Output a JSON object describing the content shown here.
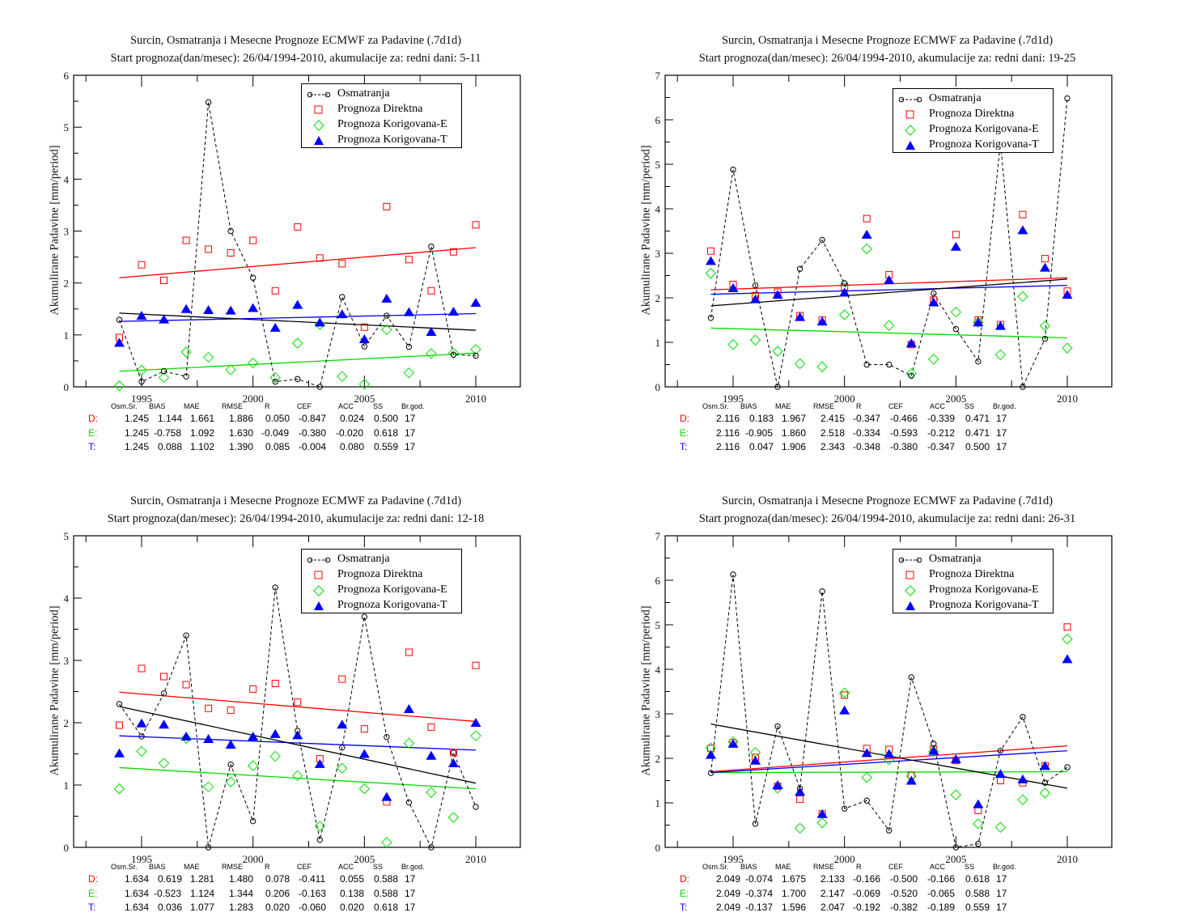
{
  "colors": {
    "observed": "#000000",
    "direct": "#ff0000",
    "corrected_e": "#00dd00",
    "corrected_t": "#0000ff"
  },
  "legend": {
    "observed": "Osmatranja",
    "direct": "Prognoza Direktna",
    "corrected_e": "Prognoza Korigovana-E",
    "corrected_t": "Prognoza Korigovana-T"
  },
  "stats_headers": [
    "Osm.Sr.",
    "BIAS",
    "MAE",
    "RMSE",
    "R",
    "CEF",
    "ACC",
    "SS",
    "Br.god."
  ],
  "stats_row_labels": [
    "D:",
    "E:",
    "T:"
  ],
  "chart_data": [
    {
      "type": "scatter",
      "title": "Surcin, Osmatranja i Mesecne Prognoze ECMWF za Padavine (.7d1d)",
      "subtitle": "Start prognoza(dan/mesec): 26/04/1994-2010, akumulacije za: redni dani: 5-11",
      "xlabel": "",
      "ylabel": "Akumulirane Padavine [mm/period]",
      "xlim": [
        1992,
        2012
      ],
      "ylim": [
        0,
        6
      ],
      "xticks": [
        1995,
        2000,
        2005,
        2010
      ],
      "yticks": [
        0,
        1,
        2,
        3,
        4,
        5,
        6
      ],
      "legend_position": "top-right",
      "x": [
        1994,
        1995,
        1996,
        1997,
        1998,
        1999,
        2000,
        2001,
        2002,
        2003,
        2004,
        2005,
        2006,
        2007,
        2008,
        2009,
        2010
      ],
      "series": [
        {
          "name": "Osmatranja",
          "values": [
            1.29,
            0.1,
            0.3,
            0.2,
            5.48,
            3.0,
            2.1,
            0.1,
            0.15,
            0.0,
            1.73,
            0.78,
            1.37,
            0.77,
            2.7,
            0.62,
            0.6
          ],
          "trend": [
            1.42,
            1.09
          ]
        },
        {
          "name": "Prognoza Direktna",
          "values": [
            0.95,
            2.35,
            2.05,
            2.82,
            2.65,
            2.58,
            2.82,
            1.85,
            3.08,
            2.48,
            2.37,
            1.15,
            3.47,
            2.45,
            1.85,
            2.6,
            3.12
          ],
          "trend": [
            2.1,
            2.68
          ]
        },
        {
          "name": "Prognoza Korigovana-E",
          "values": [
            0.02,
            0.32,
            0.18,
            0.67,
            0.57,
            0.33,
            0.46,
            0.18,
            0.84,
            1.2,
            0.2,
            0.05,
            1.1,
            0.27,
            0.64,
            0.65,
            0.72
          ],
          "trend": [
            0.3,
            0.65
          ]
        },
        {
          "name": "Prognoza Korigovana-T",
          "values": [
            0.85,
            1.37,
            1.3,
            1.5,
            1.48,
            1.47,
            1.52,
            1.14,
            1.58,
            1.24,
            1.4,
            0.92,
            1.7,
            1.44,
            1.06,
            1.45,
            1.62
          ],
          "trend": [
            1.26,
            1.41
          ]
        }
      ],
      "stats": [
        [
          "1.245",
          "1.144",
          "1.661",
          "1.886",
          "0.050",
          "-0.847",
          "0.024",
          "0.500",
          "17"
        ],
        [
          "1.245",
          "-0.758",
          "1.092",
          "1.630",
          "-0.049",
          "-0.380",
          "-0.020",
          "0.618",
          "17"
        ],
        [
          "1.245",
          "0.088",
          "1.102",
          "1.390",
          "0.085",
          "-0.004",
          "0.080",
          "0.559",
          "17"
        ]
      ]
    },
    {
      "type": "scatter",
      "title": "Surcin, Osmatranja i Mesecne Prognoze ECMWF za Padavine (.7d1d)",
      "subtitle": "Start prognoza(dan/mesec): 26/04/1994-2010, akumulacije za: redni dani: 19-25",
      "xlabel": "",
      "ylabel": "Akumulirane Padavine [mm/period]",
      "xlim": [
        1992,
        2012
      ],
      "ylim": [
        0,
        7
      ],
      "xticks": [
        1995,
        2000,
        2005,
        2010
      ],
      "yticks": [
        0,
        1,
        2,
        3,
        4,
        5,
        6,
        7
      ],
      "legend_position": "top-right",
      "x": [
        1994,
        1995,
        1996,
        1997,
        1998,
        1999,
        2000,
        2001,
        2002,
        2003,
        2004,
        2005,
        2006,
        2007,
        2008,
        2009,
        2010
      ],
      "series": [
        {
          "name": "Osmatranja",
          "values": [
            1.55,
            4.88,
            2.28,
            0.0,
            2.65,
            3.3,
            2.33,
            0.5,
            0.5,
            0.25,
            2.1,
            1.3,
            0.57,
            5.5,
            0.0,
            1.08,
            6.48
          ],
          "trend": [
            1.82,
            2.42
          ]
        },
        {
          "name": "Prognoza Direktna",
          "values": [
            3.05,
            2.3,
            2.05,
            2.13,
            1.6,
            1.5,
            2.25,
            3.78,
            2.52,
            0.95,
            1.95,
            3.42,
            1.5,
            1.4,
            3.87,
            2.88,
            2.15
          ],
          "trend": [
            2.18,
            2.45
          ]
        },
        {
          "name": "Prognoza Korigovana-E",
          "values": [
            2.55,
            0.95,
            1.05,
            0.8,
            0.52,
            0.45,
            1.62,
            3.1,
            1.38,
            0.3,
            0.62,
            1.68,
            1.45,
            0.72,
            2.03,
            1.37,
            0.87
          ],
          "trend": [
            1.32,
            1.1
          ]
        },
        {
          "name": "Prognoza Korigovana-T",
          "values": [
            2.83,
            2.22,
            1.97,
            2.07,
            1.57,
            1.47,
            2.12,
            3.42,
            2.4,
            0.98,
            1.9,
            3.15,
            1.45,
            1.37,
            3.52,
            2.68,
            2.07
          ],
          "trend": [
            2.08,
            2.28
          ]
        }
      ],
      "stats": [
        [
          "2.116",
          "0.183",
          "1.967",
          "2.415",
          "-0.347",
          "-0.466",
          "-0.339",
          "0.471",
          "17"
        ],
        [
          "2.116",
          "-0.905",
          "1.860",
          "2.518",
          "-0.334",
          "-0.593",
          "-0.212",
          "0.471",
          "17"
        ],
        [
          "2.116",
          "0.047",
          "1.906",
          "2.343",
          "-0.348",
          "-0.380",
          "-0.347",
          "0.500",
          "17"
        ]
      ]
    },
    {
      "type": "scatter",
      "title": "Surcin, Osmatranja i Mesecne Prognoze ECMWF za Padavine (.7d1d)",
      "subtitle": "Start prognoza(dan/mesec): 26/04/1994-2010, akumulacije za: redni dani: 12-18",
      "xlabel": "",
      "ylabel": "Akumulirane Padavine [mm/period]",
      "xlim": [
        1992,
        2012
      ],
      "ylim": [
        0,
        5
      ],
      "xticks": [
        1995,
        2000,
        2005,
        2010
      ],
      "yticks": [
        0,
        1,
        2,
        3,
        4,
        5
      ],
      "legend_position": "top-right",
      "x": [
        1994,
        1995,
        1996,
        1997,
        1998,
        1999,
        2000,
        2001,
        2002,
        2003,
        2004,
        2005,
        2006,
        2007,
        2008,
        2009,
        2010
      ],
      "series": [
        {
          "name": "Osmatranja",
          "values": [
            2.3,
            1.78,
            2.47,
            3.4,
            0.0,
            1.33,
            0.42,
            4.17,
            1.87,
            0.12,
            1.6,
            3.7,
            1.77,
            0.72,
            0.0,
            1.52,
            0.65
          ],
          "trend": [
            2.26,
            1.03
          ]
        },
        {
          "name": "Prognoza Direktna",
          "values": [
            1.96,
            2.87,
            2.74,
            2.61,
            2.23,
            2.2,
            2.54,
            2.63,
            2.33,
            1.42,
            2.7,
            1.9,
            0.73,
            3.13,
            1.93,
            1.52,
            2.92
          ],
          "trend": [
            2.49,
            2.02
          ]
        },
        {
          "name": "Prognoza Korigovana-E",
          "values": [
            0.94,
            1.54,
            1.35,
            1.75,
            0.97,
            1.05,
            1.31,
            1.46,
            1.15,
            0.34,
            1.27,
            0.94,
            0.08,
            1.67,
            0.88,
            0.48,
            1.79
          ],
          "trend": [
            1.28,
            0.94
          ]
        },
        {
          "name": "Prognoza Korigovana-T",
          "values": [
            1.51,
            1.99,
            1.97,
            1.78,
            1.74,
            1.65,
            1.78,
            1.82,
            1.8,
            1.34,
            1.97,
            1.5,
            0.81,
            2.22,
            1.47,
            1.35,
            2.0
          ],
          "trend": [
            1.79,
            1.56
          ]
        }
      ],
      "stats": [
        [
          "1.634",
          "0.619",
          "1.281",
          "1.480",
          "0.078",
          "-0.411",
          "0.055",
          "0.588",
          "17"
        ],
        [
          "1.634",
          "-0.523",
          "1.124",
          "1.344",
          "0.206",
          "-0.163",
          "0.138",
          "0.588",
          "17"
        ],
        [
          "1.634",
          "0.036",
          "1.077",
          "1.283",
          "0.020",
          "-0.060",
          "0.020",
          "0.618",
          "17"
        ]
      ]
    },
    {
      "type": "scatter",
      "title": "Surcin, Osmatranja i Mesecne Prognoze ECMWF za Padavine (.7d1d)",
      "subtitle": "Start prognoza(dan/mesec): 26/04/1994-2010, akumulacije za: redni dani: 26-31",
      "xlabel": "",
      "ylabel": "Akumulirane Padavine [mm/period]",
      "xlim": [
        1992,
        2012
      ],
      "ylim": [
        0,
        7
      ],
      "xticks": [
        1995,
        2000,
        2005,
        2010
      ],
      "yticks": [
        0,
        1,
        2,
        3,
        4,
        5,
        6,
        7
      ],
      "legend_position": "top-right",
      "x": [
        1994,
        1995,
        1996,
        1997,
        1998,
        1999,
        2000,
        2001,
        2002,
        2003,
        2004,
        2005,
        2006,
        2007,
        2008,
        2009,
        2010
      ],
      "series": [
        {
          "name": "Osmatranja",
          "values": [
            1.67,
            6.13,
            0.53,
            2.72,
            1.32,
            5.75,
            0.87,
            1.05,
            0.38,
            3.82,
            2.33,
            0.0,
            0.08,
            2.17,
            2.93,
            1.45,
            1.8
          ],
          "trend": [
            2.77,
            1.33
          ]
        },
        {
          "name": "Prognoza Direktna",
          "values": [
            2.22,
            2.35,
            2.02,
            1.37,
            1.08,
            0.75,
            3.42,
            2.22,
            2.2,
            1.62,
            2.2,
            1.95,
            0.83,
            1.5,
            1.45,
            1.83,
            4.95
          ],
          "trend": [
            1.7,
            2.28
          ]
        },
        {
          "name": "Prognoza Korigovana-E",
          "values": [
            2.23,
            2.37,
            2.13,
            1.33,
            0.43,
            0.55,
            3.47,
            1.57,
            1.97,
            1.6,
            2.15,
            1.18,
            0.53,
            0.45,
            1.07,
            1.22,
            4.68
          ],
          "trend": [
            1.68,
            1.7
          ]
        },
        {
          "name": "Prognoza Korigovana-T",
          "values": [
            2.08,
            2.33,
            1.95,
            1.4,
            1.25,
            0.75,
            3.08,
            2.12,
            2.1,
            1.5,
            2.17,
            1.98,
            0.97,
            1.65,
            1.53,
            1.83,
            4.23
          ],
          "trend": [
            1.68,
            2.17
          ]
        }
      ],
      "stats": [
        [
          "2.049",
          "-0.074",
          "1.675",
          "2.133",
          "-0.166",
          "-0.500",
          "-0.166",
          "0.618",
          "17"
        ],
        [
          "2.049",
          "-0.374",
          "1.700",
          "2.147",
          "-0.069",
          "-0.520",
          "-0.065",
          "0.588",
          "17"
        ],
        [
          "2.049",
          "-0.137",
          "1.596",
          "2.047",
          "-0.192",
          "-0.382",
          "-0.189",
          "0.559",
          "17"
        ]
      ]
    }
  ]
}
